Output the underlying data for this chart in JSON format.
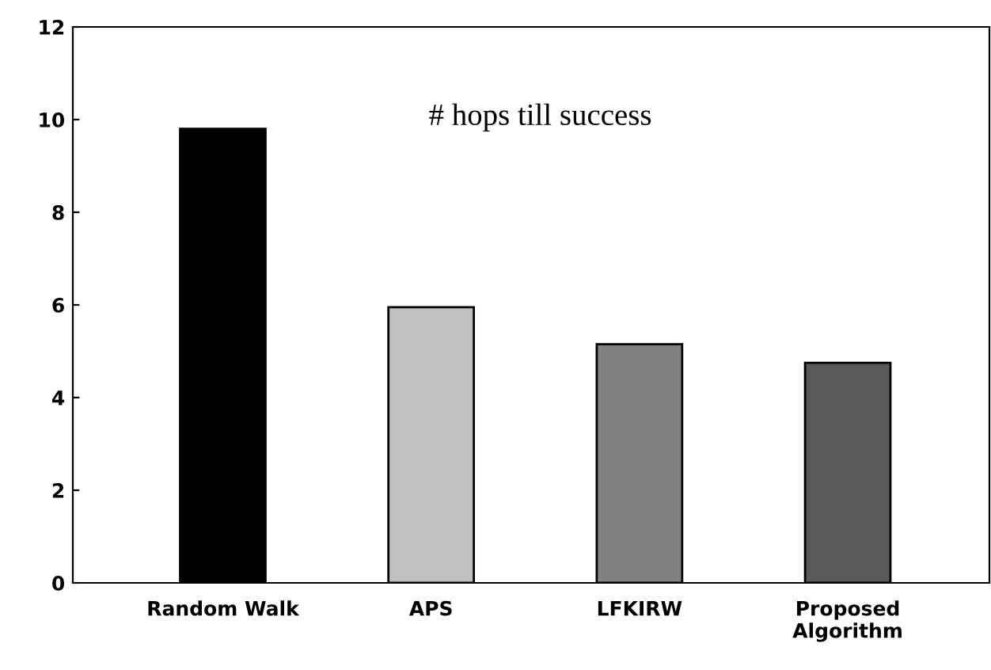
{
  "chart_data": {
    "type": "bar",
    "title": "# hops till success",
    "categories": [
      "Random Walk",
      "APS",
      "LFKIRW",
      "Proposed\nAlgorithm"
    ],
    "values": [
      9.8,
      5.95,
      5.15,
      4.75
    ],
    "colors": [
      "#000000",
      "#c0c0c0",
      "#808080",
      "#595959"
    ],
    "ylim": [
      0,
      12
    ],
    "yticks": [
      0,
      2,
      4,
      6,
      8,
      10,
      12
    ],
    "grid": false,
    "legend": false
  }
}
